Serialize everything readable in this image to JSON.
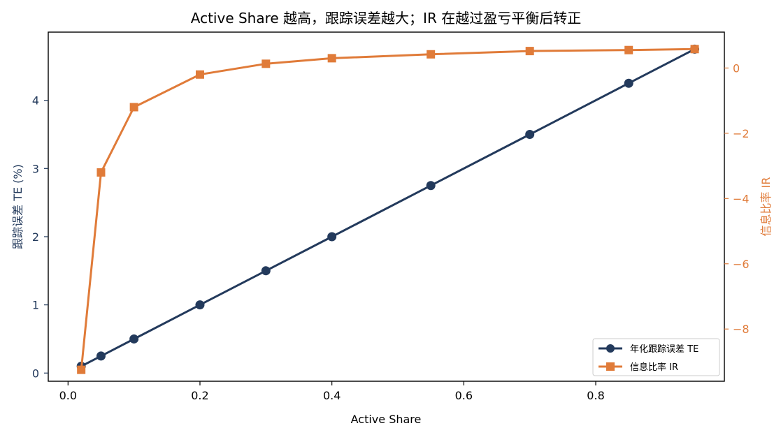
{
  "chart_data": {
    "type": "line",
    "title": "Active Share 越高，跟踪误差越大；IR 在越过盈亏平衡后转正",
    "xlabel": "Active Share",
    "ylabel_left": "跟踪误差 TE (%)",
    "ylabel_right": "信息比率 IR",
    "xlim": [
      -0.03,
      0.995
    ],
    "ylim_left": [
      -0.12,
      5.0
    ],
    "ylim_right": [
      -9.6,
      1.1
    ],
    "x_ticks": [
      0.0,
      0.2,
      0.4,
      0.6,
      0.8
    ],
    "x_tick_labels": [
      "0.0",
      "0.2",
      "0.4",
      "0.6",
      "0.8"
    ],
    "y_left_ticks": [
      0,
      1,
      2,
      3,
      4
    ],
    "y_left_tick_labels": [
      "0",
      "1",
      "2",
      "3",
      "4"
    ],
    "y_right_ticks": [
      0,
      -2,
      -4,
      -6,
      -8
    ],
    "y_right_tick_labels": [
      "0",
      "−2",
      "−4",
      "−6",
      "−8"
    ],
    "x": [
      0.02,
      0.05,
      0.1,
      0.2,
      0.3,
      0.4,
      0.55,
      0.7,
      0.85,
      0.95
    ],
    "series": [
      {
        "name": "年化跟踪误差 TE",
        "axis": "left",
        "marker": "circle",
        "color": "#233a5c",
        "values": [
          0.1,
          0.25,
          0.5,
          1.0,
          1.5,
          2.0,
          2.75,
          3.5,
          4.25,
          4.75
        ]
      },
      {
        "name": "信息比率 IR",
        "axis": "right",
        "marker": "square",
        "color": "#e07b39",
        "values": [
          -9.25,
          -3.2,
          -1.2,
          -0.2,
          0.13,
          0.3,
          0.42,
          0.52,
          0.55,
          0.58
        ]
      }
    ],
    "legend_position": "lower-right",
    "grid": false
  }
}
